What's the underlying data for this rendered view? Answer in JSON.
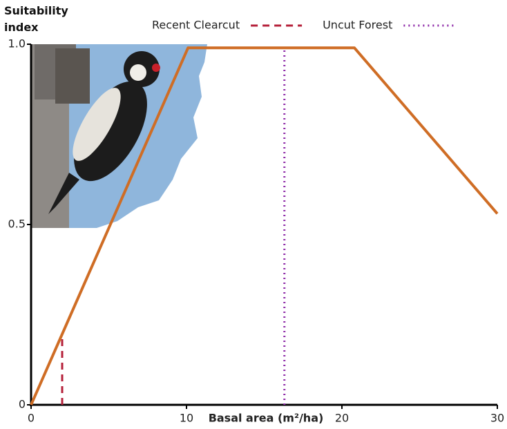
{
  "chart_data": {
    "type": "line",
    "y_label": "Suitability index",
    "x_label": "Basal area (m²/ha)",
    "xlim": [
      0,
      30
    ],
    "ylim": [
      0,
      1
    ],
    "xticks": [
      0,
      10,
      20,
      30
    ],
    "yticks": [
      0,
      0.5,
      {
        "value": 1,
        "label": "1.0"
      }
    ],
    "line": {
      "color": "#cf6d25",
      "x": [
        0,
        10.1,
        20.8,
        30
      ],
      "values": [
        0,
        0.99,
        0.99,
        0.53
      ]
    },
    "reference_lines": [
      {
        "name": "Recent Clearcut",
        "color": "#b5203a",
        "style": "dashed",
        "x": [
          2,
          2
        ],
        "values": [
          0,
          0.19
        ]
      },
      {
        "name": "Uncut Forest",
        "color": "#8e2aa8",
        "style": "dotted",
        "x": [
          16.3,
          16.3
        ],
        "values": [
          0,
          0.99
        ]
      }
    ]
  }
}
